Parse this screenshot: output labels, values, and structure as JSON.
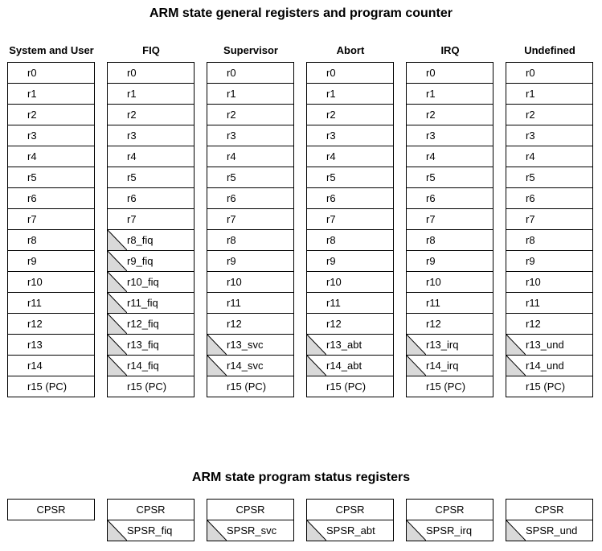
{
  "titles": {
    "registers": "ARM state general registers and program counter",
    "psr": "ARM state program status registers"
  },
  "modes": [
    {
      "name": "System and User",
      "registers": [
        {
          "label": "r0",
          "banked": false
        },
        {
          "label": "r1",
          "banked": false
        },
        {
          "label": "r2",
          "banked": false
        },
        {
          "label": "r3",
          "banked": false
        },
        {
          "label": "r4",
          "banked": false
        },
        {
          "label": "r5",
          "banked": false
        },
        {
          "label": "r6",
          "banked": false
        },
        {
          "label": "r7",
          "banked": false
        },
        {
          "label": "r8",
          "banked": false
        },
        {
          "label": "r9",
          "banked": false
        },
        {
          "label": "r10",
          "banked": false
        },
        {
          "label": "r11",
          "banked": false
        },
        {
          "label": "r12",
          "banked": false
        },
        {
          "label": "r13",
          "banked": false
        },
        {
          "label": "r14",
          "banked": false
        },
        {
          "label": "r15 (PC)",
          "banked": false
        }
      ],
      "psr": [
        {
          "label": "CPSR",
          "banked": false
        }
      ]
    },
    {
      "name": "FIQ",
      "registers": [
        {
          "label": "r0",
          "banked": false
        },
        {
          "label": "r1",
          "banked": false
        },
        {
          "label": "r2",
          "banked": false
        },
        {
          "label": "r3",
          "banked": false
        },
        {
          "label": "r4",
          "banked": false
        },
        {
          "label": "r5",
          "banked": false
        },
        {
          "label": "r6",
          "banked": false
        },
        {
          "label": "r7",
          "banked": false
        },
        {
          "label": "r8_fiq",
          "banked": true
        },
        {
          "label": "r9_fiq",
          "banked": true
        },
        {
          "label": "r10_fiq",
          "banked": true
        },
        {
          "label": "r11_fiq",
          "banked": true
        },
        {
          "label": "r12_fiq",
          "banked": true
        },
        {
          "label": "r13_fiq",
          "banked": true
        },
        {
          "label": "r14_fiq",
          "banked": true
        },
        {
          "label": "r15 (PC)",
          "banked": false
        }
      ],
      "psr": [
        {
          "label": "CPSR",
          "banked": false
        },
        {
          "label": "SPSR_fiq",
          "banked": true
        }
      ]
    },
    {
      "name": "Supervisor",
      "registers": [
        {
          "label": "r0",
          "banked": false
        },
        {
          "label": "r1",
          "banked": false
        },
        {
          "label": "r2",
          "banked": false
        },
        {
          "label": "r3",
          "banked": false
        },
        {
          "label": "r4",
          "banked": false
        },
        {
          "label": "r5",
          "banked": false
        },
        {
          "label": "r6",
          "banked": false
        },
        {
          "label": "r7",
          "banked": false
        },
        {
          "label": "r8",
          "banked": false
        },
        {
          "label": "r9",
          "banked": false
        },
        {
          "label": "r10",
          "banked": false
        },
        {
          "label": "r11",
          "banked": false
        },
        {
          "label": "r12",
          "banked": false
        },
        {
          "label": "r13_svc",
          "banked": true
        },
        {
          "label": "r14_svc",
          "banked": true
        },
        {
          "label": "r15 (PC)",
          "banked": false
        }
      ],
      "psr": [
        {
          "label": "CPSR",
          "banked": false
        },
        {
          "label": "SPSR_svc",
          "banked": true
        }
      ]
    },
    {
      "name": "Abort",
      "registers": [
        {
          "label": "r0",
          "banked": false
        },
        {
          "label": "r1",
          "banked": false
        },
        {
          "label": "r2",
          "banked": false
        },
        {
          "label": "r3",
          "banked": false
        },
        {
          "label": "r4",
          "banked": false
        },
        {
          "label": "r5",
          "banked": false
        },
        {
          "label": "r6",
          "banked": false
        },
        {
          "label": "r7",
          "banked": false
        },
        {
          "label": "r8",
          "banked": false
        },
        {
          "label": "r9",
          "banked": false
        },
        {
          "label": "r10",
          "banked": false
        },
        {
          "label": "r11",
          "banked": false
        },
        {
          "label": "r12",
          "banked": false
        },
        {
          "label": "r13_abt",
          "banked": true
        },
        {
          "label": "r14_abt",
          "banked": true
        },
        {
          "label": "r15 (PC)",
          "banked": false
        }
      ],
      "psr": [
        {
          "label": "CPSR",
          "banked": false
        },
        {
          "label": "SPSR_abt",
          "banked": true
        }
      ]
    },
    {
      "name": "IRQ",
      "registers": [
        {
          "label": "r0",
          "banked": false
        },
        {
          "label": "r1",
          "banked": false
        },
        {
          "label": "r2",
          "banked": false
        },
        {
          "label": "r3",
          "banked": false
        },
        {
          "label": "r4",
          "banked": false
        },
        {
          "label": "r5",
          "banked": false
        },
        {
          "label": "r6",
          "banked": false
        },
        {
          "label": "r7",
          "banked": false
        },
        {
          "label": "r8",
          "banked": false
        },
        {
          "label": "r9",
          "banked": false
        },
        {
          "label": "r10",
          "banked": false
        },
        {
          "label": "r11",
          "banked": false
        },
        {
          "label": "r12",
          "banked": false
        },
        {
          "label": "r13_irq",
          "banked": true
        },
        {
          "label": "r14_irq",
          "banked": true
        },
        {
          "label": "r15 (PC)",
          "banked": false
        }
      ],
      "psr": [
        {
          "label": "CPSR",
          "banked": false
        },
        {
          "label": "SPSR_irq",
          "banked": true
        }
      ]
    },
    {
      "name": "Undefined",
      "registers": [
        {
          "label": "r0",
          "banked": false
        },
        {
          "label": "r1",
          "banked": false
        },
        {
          "label": "r2",
          "banked": false
        },
        {
          "label": "r3",
          "banked": false
        },
        {
          "label": "r4",
          "banked": false
        },
        {
          "label": "r5",
          "banked": false
        },
        {
          "label": "r6",
          "banked": false
        },
        {
          "label": "r7",
          "banked": false
        },
        {
          "label": "r8",
          "banked": false
        },
        {
          "label": "r9",
          "banked": false
        },
        {
          "label": "r10",
          "banked": false
        },
        {
          "label": "r11",
          "banked": false
        },
        {
          "label": "r12",
          "banked": false
        },
        {
          "label": "r13_und",
          "banked": true
        },
        {
          "label": "r14_und",
          "banked": true
        },
        {
          "label": "r15 (PC)",
          "banked": false
        }
      ],
      "psr": [
        {
          "label": "CPSR",
          "banked": false
        },
        {
          "label": "SPSR_und",
          "banked": true
        }
      ]
    }
  ],
  "colors": {
    "banked_shade": "#d9d9d9",
    "border": "#000000"
  }
}
